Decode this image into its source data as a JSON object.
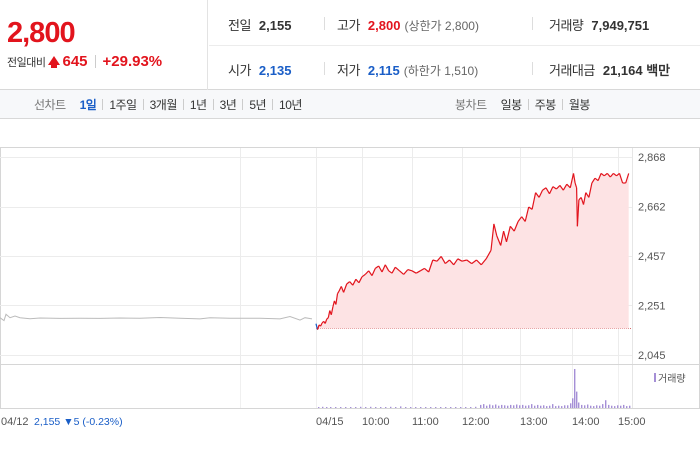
{
  "quote": {
    "price": "2,800",
    "change_label": "전일대비",
    "change_amount": "645",
    "change_percent": "+29.93%",
    "prev_close_label": "전일",
    "prev_close": "2,155",
    "open_label": "시가",
    "open": "2,135",
    "high_label": "고가",
    "high": "2,800",
    "upper_limit_note": "(상한가 2,800)",
    "low_label": "저가",
    "low": "2,115",
    "lower_limit_note": "(하한가 1,510)",
    "volume_label": "거래량",
    "volume": "7,949,751",
    "value_label": "거래대금",
    "value": "21,164 백만"
  },
  "tabs": {
    "line_caption": "선차트",
    "line_items": [
      "1일",
      "1주일",
      "3개월",
      "1년",
      "3년",
      "5년",
      "10년"
    ],
    "candle_caption": "봉차트",
    "candle_items": [
      "일봉",
      "주봉",
      "월봉"
    ]
  },
  "colors": {
    "up": "#e2141d",
    "down": "#1a5ec7",
    "prev_line": "#bbbbbb",
    "volume": "#a58fd6"
  },
  "chart_data": {
    "type": "line",
    "y_ticks": [
      "2,868",
      "2,662",
      "2,457",
      "2,251",
      "2,045"
    ],
    "ylim": [
      2045,
      2868
    ],
    "reference_price": 2155,
    "x_tick_labels": [
      "04/12",
      "04/15",
      "10:00",
      "11:00",
      "12:00",
      "13:00",
      "14:00",
      "15:00"
    ],
    "prev_day_info": {
      "date": "04/12",
      "close": "2,155",
      "change": "▼5",
      "change_pct": "(-0.23%)"
    },
    "volume_legend": "거래량",
    "prev_day_series": [
      [
        0,
        2200
      ],
      [
        4,
        2188
      ],
      [
        6,
        2214
      ],
      [
        10,
        2200
      ],
      [
        15,
        2207
      ],
      [
        20,
        2200
      ],
      [
        30,
        2196
      ],
      [
        40,
        2199
      ],
      [
        60,
        2197
      ],
      [
        80,
        2198
      ],
      [
        100,
        2197
      ],
      [
        120,
        2199
      ],
      [
        140,
        2198
      ],
      [
        160,
        2201
      ],
      [
        180,
        2198
      ],
      [
        200,
        2195
      ],
      [
        210,
        2200
      ],
      [
        230,
        2198
      ],
      [
        260,
        2198
      ],
      [
        280,
        2195
      ],
      [
        290,
        2205
      ],
      [
        300,
        2190
      ],
      [
        305,
        2200
      ],
      [
        312,
        2195
      ]
    ],
    "today_x_labels_pos": {
      "09:00": 316,
      "10:00": 362,
      "11:00": 412,
      "12:00": 462,
      "13:00": 520,
      "14:00": 572,
      "15:00": 618
    },
    "today_series": [
      [
        "09:00",
        2175
      ],
      [
        "09:02",
        2150
      ],
      [
        "09:04",
        2170
      ],
      [
        "09:06",
        2165
      ],
      [
        "09:08",
        2178
      ],
      [
        "09:10",
        2185
      ],
      [
        "09:12",
        2176
      ],
      [
        "09:14",
        2194
      ],
      [
        "09:16",
        2200
      ],
      [
        "09:18",
        2230
      ],
      [
        "09:20",
        2212
      ],
      [
        "09:22",
        2245
      ],
      [
        "09:24",
        2270
      ],
      [
        "09:26",
        2255
      ],
      [
        "09:28",
        2300
      ],
      [
        "09:30",
        2310
      ],
      [
        "09:33",
        2330
      ],
      [
        "09:36",
        2305
      ],
      [
        "09:40",
        2340
      ],
      [
        "09:44",
        2350
      ],
      [
        "09:48",
        2335
      ],
      [
        "09:52",
        2360
      ],
      [
        "09:56",
        2345
      ],
      [
        "10:00",
        2370
      ],
      [
        "10:04",
        2380
      ],
      [
        "10:08",
        2395
      ],
      [
        "10:12",
        2375
      ],
      [
        "10:16",
        2405
      ],
      [
        "10:20",
        2415
      ],
      [
        "10:24",
        2390
      ],
      [
        "10:28",
        2420
      ],
      [
        "10:32",
        2395
      ],
      [
        "10:36",
        2385
      ],
      [
        "10:40",
        2410
      ],
      [
        "10:45",
        2395
      ],
      [
        "10:50",
        2380
      ],
      [
        "10:55",
        2400
      ],
      [
        "11:00",
        2395
      ],
      [
        "11:05",
        2385
      ],
      [
        "11:10",
        2395
      ],
      [
        "11:15",
        2405
      ],
      [
        "11:20",
        2390
      ],
      [
        "11:25",
        2440
      ],
      [
        "11:30",
        2435
      ],
      [
        "11:35",
        2455
      ],
      [
        "11:40",
        2425
      ],
      [
        "11:45",
        2440
      ],
      [
        "11:50",
        2420
      ],
      [
        "11:55",
        2445
      ],
      [
        "12:00",
        2435
      ],
      [
        "12:05",
        2440
      ],
      [
        "12:10",
        2425
      ],
      [
        "12:15",
        2440
      ],
      [
        "12:20",
        2420
      ],
      [
        "12:25",
        2445
      ],
      [
        "12:30",
        2480
      ],
      [
        "12:33",
        2590
      ],
      [
        "12:36",
        2540
      ],
      [
        "12:40",
        2500
      ],
      [
        "12:43",
        2560
      ],
      [
        "12:46",
        2515
      ],
      [
        "12:50",
        2580
      ],
      [
        "12:54",
        2560
      ],
      [
        "12:58",
        2600
      ],
      [
        "13:02",
        2620
      ],
      [
        "13:06",
        2600
      ],
      [
        "13:10",
        2660
      ],
      [
        "13:14",
        2650
      ],
      [
        "13:18",
        2720
      ],
      [
        "13:22",
        2700
      ],
      [
        "13:26",
        2730
      ],
      [
        "13:30",
        2740
      ],
      [
        "13:34",
        2715
      ],
      [
        "13:38",
        2745
      ],
      [
        "13:42",
        2735
      ],
      [
        "13:46",
        2750
      ],
      [
        "13:50",
        2730
      ],
      [
        "13:54",
        2755
      ],
      [
        "13:58",
        2740
      ],
      [
        "14:02",
        2800
      ],
      [
        "14:04",
        2760
      ],
      [
        "14:06",
        2740
      ],
      [
        "14:07",
        2580
      ],
      [
        "14:09",
        2690
      ],
      [
        "14:12",
        2700
      ],
      [
        "14:15",
        2670
      ],
      [
        "14:18",
        2720
      ],
      [
        "14:22",
        2700
      ],
      [
        "14:26",
        2760
      ],
      [
        "14:30",
        2780
      ],
      [
        "14:34",
        2770
      ],
      [
        "14:38",
        2800
      ],
      [
        "14:42",
        2790
      ],
      [
        "14:46",
        2800
      ],
      [
        "14:50",
        2785
      ],
      [
        "14:54",
        2800
      ],
      [
        "14:58",
        2790
      ],
      [
        "15:02",
        2800
      ],
      [
        "15:06",
        2760
      ],
      [
        "15:10",
        2760
      ],
      [
        "15:14",
        2800
      ]
    ],
    "volume_bars": [
      [
        318,
        2
      ],
      [
        322,
        3
      ],
      [
        326,
        2
      ],
      [
        330,
        2
      ],
      [
        335,
        1
      ],
      [
        340,
        2
      ],
      [
        345,
        2
      ],
      [
        350,
        1
      ],
      [
        355,
        1
      ],
      [
        360,
        3
      ],
      [
        365,
        1
      ],
      [
        370,
        3
      ],
      [
        375,
        2
      ],
      [
        380,
        2
      ],
      [
        385,
        1
      ],
      [
        390,
        3
      ],
      [
        395,
        2
      ],
      [
        400,
        4
      ],
      [
        405,
        2
      ],
      [
        410,
        2
      ],
      [
        415,
        2
      ],
      [
        420,
        2
      ],
      [
        425,
        1
      ],
      [
        430,
        2
      ],
      [
        435,
        2
      ],
      [
        440,
        2
      ],
      [
        445,
        1
      ],
      [
        450,
        2
      ],
      [
        455,
        2
      ],
      [
        460,
        1
      ],
      [
        465,
        2
      ],
      [
        470,
        1
      ],
      [
        475,
        3
      ],
      [
        480,
        8
      ],
      [
        483,
        10
      ],
      [
        486,
        6
      ],
      [
        489,
        9
      ],
      [
        492,
        7
      ],
      [
        495,
        9
      ],
      [
        498,
        6
      ],
      [
        501,
        8
      ],
      [
        504,
        7
      ],
      [
        507,
        6
      ],
      [
        510,
        8
      ],
      [
        513,
        7
      ],
      [
        516,
        9
      ],
      [
        519,
        7
      ],
      [
        522,
        8
      ],
      [
        525,
        6
      ],
      [
        528,
        7
      ],
      [
        531,
        10
      ],
      [
        534,
        6
      ],
      [
        537,
        8
      ],
      [
        540,
        6
      ],
      [
        543,
        7
      ],
      [
        546,
        5
      ],
      [
        549,
        6
      ],
      [
        552,
        10
      ],
      [
        555,
        5
      ],
      [
        558,
        6
      ],
      [
        561,
        5
      ],
      [
        564,
        7
      ],
      [
        567,
        7
      ],
      [
        570,
        12
      ],
      [
        572,
        25
      ],
      [
        574,
        100
      ],
      [
        576,
        42
      ],
      [
        578,
        14
      ],
      [
        581,
        8
      ],
      [
        584,
        7
      ],
      [
        587,
        9
      ],
      [
        590,
        6
      ],
      [
        593,
        5
      ],
      [
        596,
        7
      ],
      [
        599,
        6
      ],
      [
        602,
        10
      ],
      [
        605,
        20
      ],
      [
        608,
        8
      ],
      [
        611,
        6
      ],
      [
        614,
        5
      ],
      [
        617,
        7
      ],
      [
        620,
        6
      ],
      [
        623,
        8
      ],
      [
        626,
        5
      ],
      [
        629,
        6
      ]
    ]
  }
}
